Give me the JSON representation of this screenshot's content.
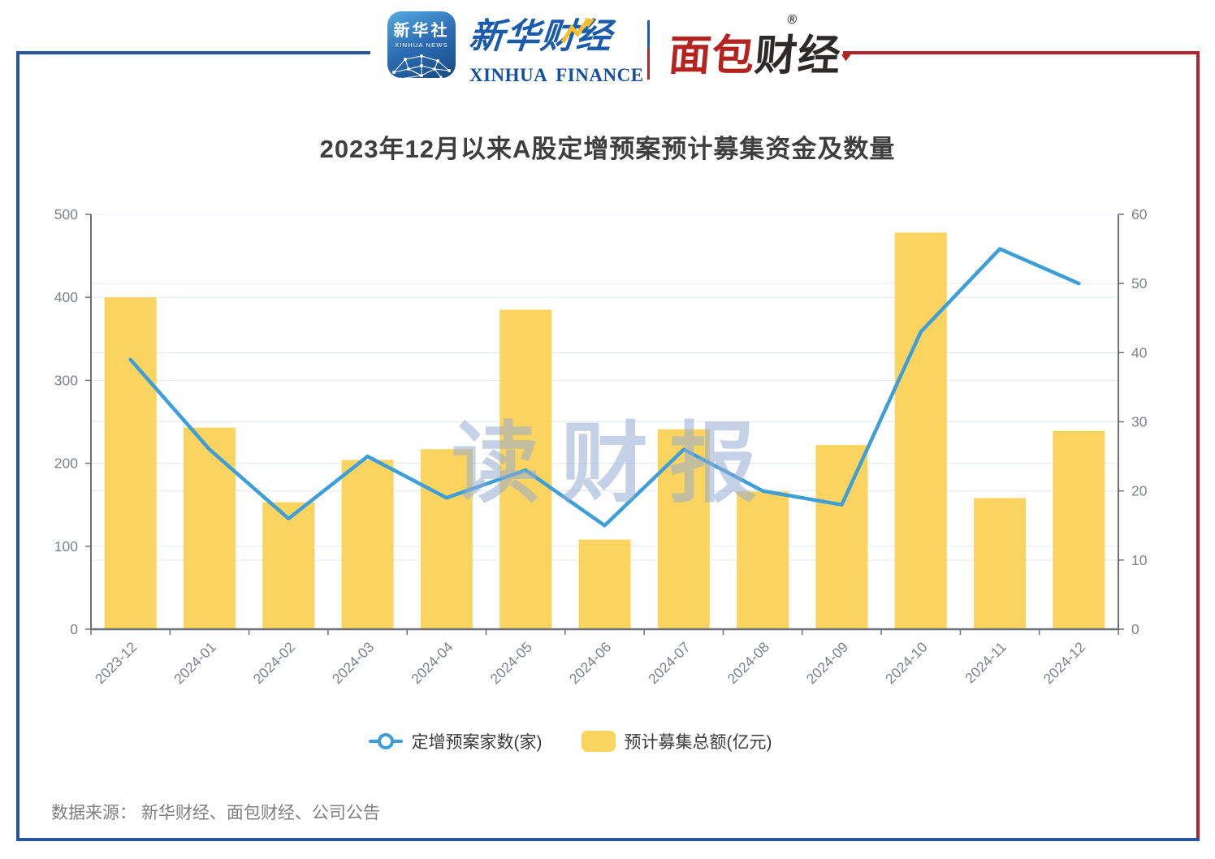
{
  "page": {
    "source_note": "数据来源： 新华财经、面包财经、公司公告"
  },
  "header": {
    "xinhua_app": {
      "cn": "新华社",
      "en": "XINHUA NEWS"
    },
    "xinhua_finance": {
      "cn": "新华财经",
      "en": "XINHUA FINANCE"
    },
    "bread_finance": {
      "red": "面包",
      "dark": "财经",
      "reg": "®"
    }
  },
  "watermark": "读财报",
  "chart_data": {
    "type": "combo",
    "title": "2023年12月以来A股定增预案预计募集资金及数量",
    "categories": [
      "2023-12",
      "2024-01",
      "2024-02",
      "2024-03",
      "2024-04",
      "2024-05",
      "2024-06",
      "2024-07",
      "2024-08",
      "2024-09",
      "2024-10",
      "2024-11",
      "2024-12"
    ],
    "series": [
      {
        "name": "预计募集总额(亿元)",
        "type": "bar",
        "axis": "left",
        "values": [
          400,
          243,
          153,
          204,
          217,
          385,
          108,
          241,
          166,
          222,
          478,
          158,
          239
        ]
      },
      {
        "name": "定增预案家数(家)",
        "type": "line",
        "axis": "right",
        "values": [
          39,
          26,
          16,
          25,
          19,
          23,
          15,
          26,
          20,
          18,
          43,
          55,
          50
        ]
      }
    ],
    "left_axis": {
      "min": 0,
      "max": 500,
      "step": 100,
      "ticks": [
        0,
        100,
        200,
        300,
        400,
        500
      ]
    },
    "right_axis": {
      "min": 0,
      "max": 60,
      "step": 10,
      "ticks": [
        0,
        10,
        20,
        30,
        40,
        50,
        60
      ]
    },
    "grid": true,
    "legend_position": "bottom",
    "x_label_rotation": -45
  },
  "colors": {
    "bar": "#FBD45F",
    "line": "#3C9FD9",
    "grid": "#E3E9F4",
    "axis": "#6E7079",
    "tick-label": "#7D828E",
    "title": "#3E3E3E",
    "text": "#3A3A3A",
    "muted": "#7F7F7F",
    "frame-blue": "#27549B",
    "frame-red": "#B2232B",
    "logo-blue": "#1A5BAC",
    "logo-red": "#B5231F",
    "wm": "rgba(150,172,210,0.55)"
  }
}
